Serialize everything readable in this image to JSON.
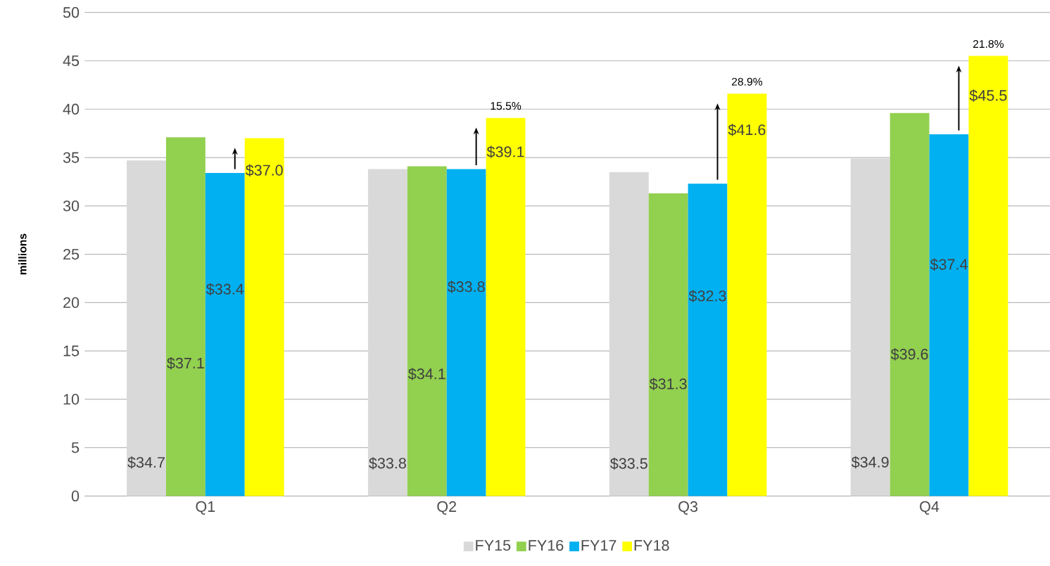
{
  "chart_data": {
    "type": "bar",
    "ylabel": "millions",
    "categories": [
      "Q1",
      "Q2",
      "Q3",
      "Q4"
    ],
    "series": [
      {
        "name": "FY15",
        "color": "#d9d9d9",
        "values": [
          34.7,
          33.8,
          33.5,
          34.9
        ],
        "value_labels": [
          "$34.7",
          "$33.8",
          "$33.5",
          "$34.9"
        ]
      },
      {
        "name": "FY16",
        "color": "#92d050",
        "values": [
          37.1,
          34.1,
          31.3,
          39.6
        ],
        "value_labels": [
          "$37.1",
          "$34.1",
          "$31.3",
          "$39.6"
        ]
      },
      {
        "name": "FY17",
        "color": "#00b0f0",
        "values": [
          33.4,
          33.8,
          32.3,
          37.4
        ],
        "value_labels": [
          "$33.4",
          "$33.8",
          "$32.3",
          "$37.4"
        ]
      },
      {
        "name": "FY18",
        "color": "#ffff00",
        "values": [
          37.0,
          39.1,
          41.6,
          45.5
        ],
        "value_labels": [
          "$37.0",
          "$39.1",
          "$41.6",
          "$45.5"
        ]
      }
    ],
    "annotations": [
      "15.5%",
      "28.9%",
      "21.8%"
    ],
    "ylim": [
      0,
      50
    ],
    "yticks": [
      0,
      5,
      10,
      15,
      20,
      25,
      30,
      35,
      40,
      45,
      50
    ],
    "grid": "y",
    "legend": "bottom"
  }
}
